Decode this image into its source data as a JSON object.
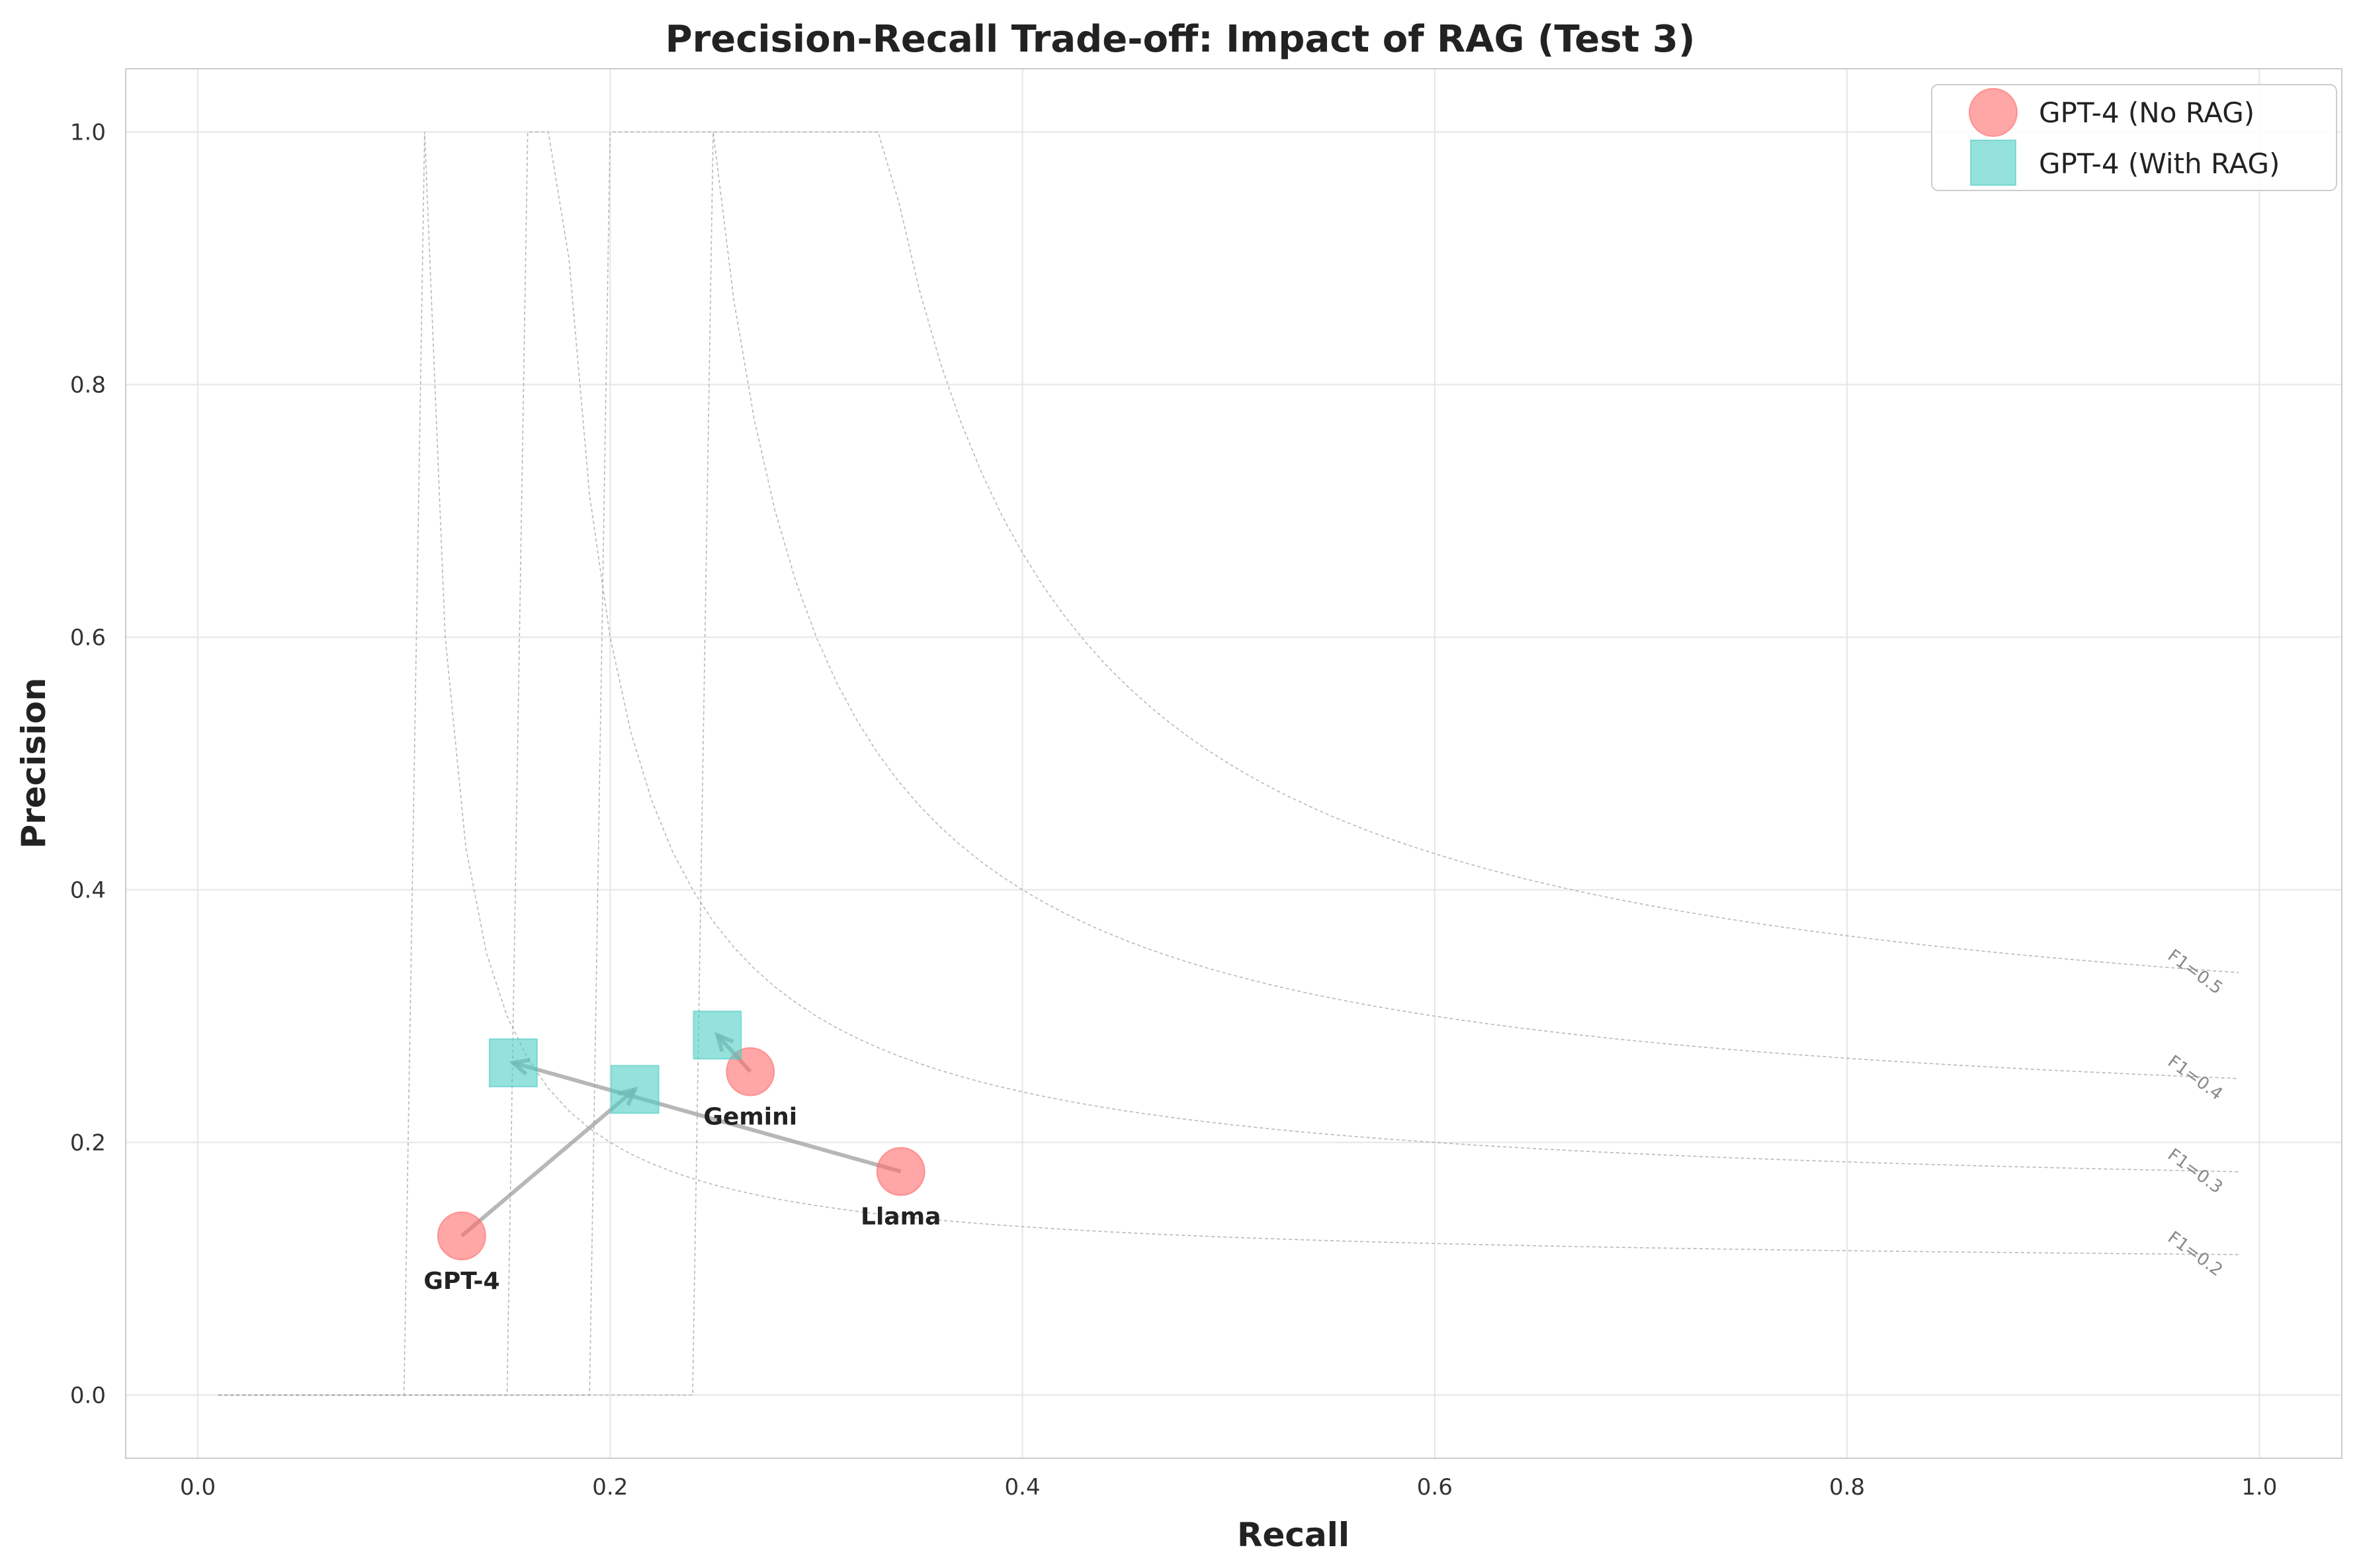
{
  "chart_data": {
    "type": "scatter",
    "title": "Precision-Recall Trade-off: Impact of RAG (Test 3)",
    "xlabel": "Recall",
    "ylabel": "Precision",
    "xlim": [
      -0.035,
      1.04
    ],
    "ylim": [
      -0.05,
      1.05
    ],
    "xticks": [
      "0.0",
      "0.2",
      "0.4",
      "0.6",
      "0.8",
      "1.0"
    ],
    "yticks": [
      "0.0",
      "0.2",
      "0.4",
      "0.6",
      "0.8",
      "1.0"
    ],
    "grid": true,
    "legend": {
      "position": "top-right",
      "entries": [
        "GPT-4 (No RAG)",
        "GPT-4 (With RAG)"
      ]
    },
    "series": [
      {
        "name": "GPT-4 (No RAG)",
        "marker": "circle",
        "color": "#FF6B6B",
        "points": [
          {
            "label": "GPT-4",
            "x": 0.128,
            "y": 0.126
          },
          {
            "label": "Gemini",
            "x": 0.268,
            "y": 0.256
          },
          {
            "label": "Llama",
            "x": 0.341,
            "y": 0.177
          }
        ]
      },
      {
        "name": "GPT-4 (With RAG)",
        "marker": "square",
        "color": "#4ECDC4",
        "points": [
          {
            "label": "GPT-4",
            "x": 0.212,
            "y": 0.242
          },
          {
            "label": "Gemini",
            "x": 0.252,
            "y": 0.285
          },
          {
            "label": "Llama",
            "x": 0.153,
            "y": 0.263
          }
        ]
      }
    ],
    "arrows": [
      {
        "from": [
          0.128,
          0.126
        ],
        "to": [
          0.212,
          0.242
        ]
      },
      {
        "from": [
          0.268,
          0.256
        ],
        "to": [
          0.252,
          0.285
        ]
      },
      {
        "from": [
          0.341,
          0.177
        ],
        "to": [
          0.153,
          0.263
        ]
      }
    ],
    "iso_f1": [
      {
        "f1": 0.2,
        "label": "F1=0.2"
      },
      {
        "f1": 0.3,
        "label": "F1=0.3"
      },
      {
        "f1": 0.4,
        "label": "F1=0.4"
      },
      {
        "f1": 0.5,
        "label": "F1=0.5"
      }
    ]
  }
}
